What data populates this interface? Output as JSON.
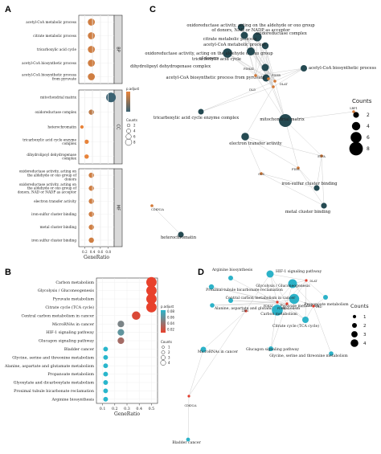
{
  "chart_data": [
    {
      "panel": "A",
      "type": "scatter",
      "xlabel": "GeneRatio",
      "xlim": [
        0.05,
        0.95
      ],
      "xticks": [
        0.2,
        0.4,
        0.6,
        0.8
      ],
      "facets": [
        {
          "name": "BP",
          "categories": [
            "acetyl-CoA metabolic process",
            "citrate metabolic process",
            "tricarboxylic acid cycle",
            "acetyl-CoA biosynthetic process",
            "acetyl-CoA biosynthetic process from pyruvate"
          ],
          "x": [
            0.37,
            0.37,
            0.37,
            0.37,
            0.37
          ],
          "size": [
            5,
            5,
            5,
            5,
            5
          ],
          "p_adjust": [
            0.009,
            0.009,
            0.009,
            0.009,
            0.009
          ]
        },
        {
          "name": "CC",
          "categories": [
            "mitochondrial matrix",
            "oxidoreductase complex",
            "heterochromatin",
            "tricarboxylic acid cycle enzyme complex",
            "dihydrolipoyl dehydrogenase complex"
          ],
          "x": [
            0.87,
            0.37,
            0.13,
            0.25,
            0.25
          ],
          "size": [
            8,
            3,
            1,
            2,
            2
          ],
          "p_adjust": [
            0.033,
            0.012,
            0.005,
            0.005,
            0.005
          ]
        },
        {
          "name": "MF",
          "categories": [
            "oxidoreductase activity, acting on the aldehyde or oxo group of donors",
            "oxidoreductase activity, acting on the aldehyde or oxo group of donors, NAD or NADP as acceptor",
            "electron transfer activity",
            "iron-sulfur cluster binding",
            "metal cluster binding",
            "iron sulfur cluster binding"
          ],
          "x": [
            0.37,
            0.37,
            0.37,
            0.37,
            0.37,
            0.37
          ],
          "size": [
            3,
            3,
            3,
            3,
            3,
            3
          ],
          "p_adjust": [
            0.009,
            0.009,
            0.009,
            0.009,
            0.009,
            0.009
          ]
        }
      ],
      "legend_color": {
        "title": "p.adjust",
        "low_color": "#3b6272",
        "high_color": "#e8833a"
      },
      "legend_size": {
        "title": "Counts",
        "values": [
          2,
          4,
          6,
          8
        ]
      }
    },
    {
      "panel": "B",
      "type": "scatter",
      "xlabel": "GeneRatio",
      "xlim": [
        0.05,
        0.55
      ],
      "xticks": [
        0.1,
        0.2,
        0.3,
        0.4,
        0.5
      ],
      "categories": [
        "Carbon metabolism",
        "Glycolysis / Gluconeogenesis",
        "Pyruvate metabolism",
        "Citrate cycle (TCA cycle)",
        "Central carbon metabolism in cancer",
        "MicroRNAs in cancer",
        "HIF-1 signaling pathway",
        "Glucagon signaling pathway",
        "Bladder cancer",
        "Glycine, serine and threonine metabolism",
        "Alanine, aspartate and glutamate metabolism",
        "Propanoate metabolism",
        "Glyoxylate and dicarboxylate metabolism",
        "Proximal tubule bicarbonate reclamation",
        "Arginine biosynthesis"
      ],
      "x": [
        0.5,
        0.5,
        0.5,
        0.5,
        0.375,
        0.25,
        0.25,
        0.25,
        0.125,
        0.125,
        0.125,
        0.125,
        0.125,
        0.125,
        0.125
      ],
      "size": [
        4,
        4,
        4,
        4,
        3,
        2,
        2,
        2,
        1,
        1,
        1,
        1,
        1,
        1,
        1
      ],
      "p_adjust": [
        0.02,
        0.02,
        0.02,
        0.02,
        0.025,
        0.06,
        0.07,
        0.045,
        0.09,
        0.09,
        0.09,
        0.09,
        0.09,
        0.09,
        0.09
      ],
      "legend_color": {
        "title": "p.adjust",
        "ticks": [
          "0.08",
          "0.06",
          "0.04",
          "0.02"
        ],
        "low_color": "#e8412c",
        "high_color": "#29b6cc"
      },
      "legend_size": {
        "title": "Counts",
        "values": [
          1,
          2,
          3,
          4
        ]
      }
    },
    {
      "panel": "C",
      "type": "network",
      "term_nodes": [
        "oxidoreductase activity, acting on the aldehyde or oxo group of donors, NAD or NADP as acceptor",
        "citrate metabolic process",
        "oxidoreductase complex",
        "acetyl-CoA metabolic process",
        "oxidoreductase activity, acting on the aldehyde or oxo group of donors",
        "tricarboxylic acid cycle",
        "acetyl-CoA biosynthetic process",
        "dihydrolipoyl dehydrogenase complex",
        "acetyl-CoA biosynthetic process from pyruvate",
        "tricarboxylic acid cycle enzyme complex",
        "mitochondrial matrix",
        "electron transfer activity",
        "iron-sulfur cluster binding",
        "metal cluster binding",
        "heterochromatin"
      ],
      "gene_nodes": [
        "PDHA1",
        "PDHB",
        "DLD",
        "DLAT",
        "LRP1",
        "ETFA",
        "FDX1",
        "GCS",
        "CDKN2A"
      ],
      "legend_size": {
        "title": "Counts",
        "values": [
          2,
          4,
          6,
          8
        ]
      }
    },
    {
      "panel": "D",
      "type": "network",
      "term_nodes": [
        "Arginine biosynthesis",
        "HIF-1 signaling pathway",
        "Proximal tubule bicarbonate reclamation",
        "Glycolysis / Gluconeogenesis",
        "Pyruvate metabolism",
        "Central carbon metabolism in cancer",
        "Alanine, aspartate and glutamate metabolism",
        "Carbon metabolism",
        "Citrate cycle (TCA cycle)",
        "Propanoate metabolism",
        "MicroRNAs in cancer",
        "Glucagon signaling pathway",
        "Glycine, serine and threonine metabolism",
        "Bladder cancer"
      ],
      "gene_nodes": [
        "DLAT",
        "PDHB",
        "PDHA1",
        "DLD",
        "CDKN2A",
        "LRP1"
      ],
      "legend_size": {
        "title": "Counts",
        "values": [
          1,
          2,
          3,
          4
        ]
      }
    }
  ]
}
